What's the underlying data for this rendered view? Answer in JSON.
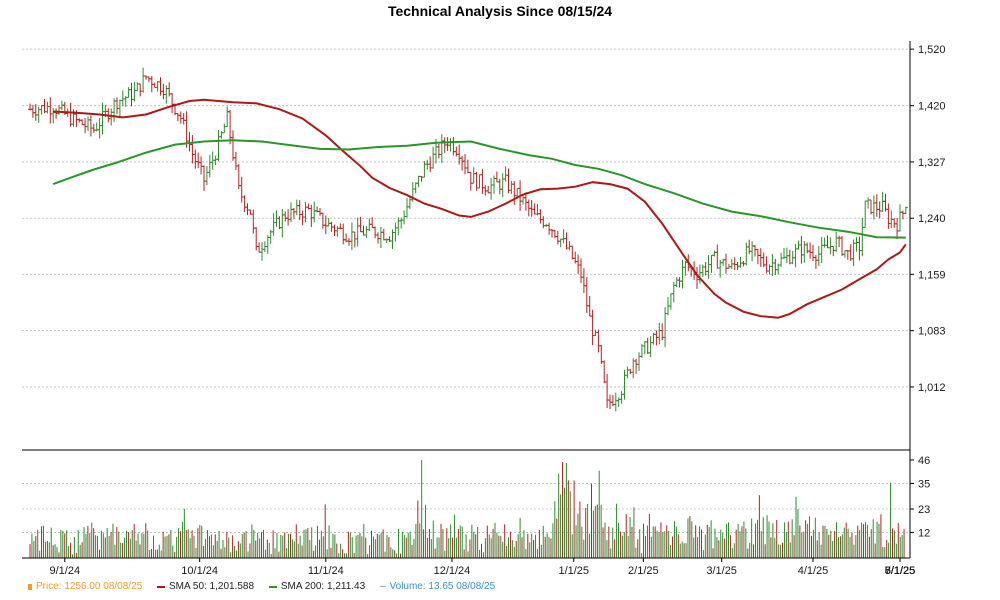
{
  "title": "Technical Analysis Since 08/15/24",
  "colors": {
    "up_bar": "#2e8b2e",
    "down_bar": "#b22222",
    "sma50": "#b01818",
    "sma200": "#2a962a",
    "price_swatch": "#f29c2b",
    "volume_text": "#3a8fc9",
    "grid": "#b8b8b8",
    "axis": "#000000"
  },
  "legend": {
    "price": "Price: 1256.00  08/08/25",
    "sma50": "SMA 50: 1,201.588",
    "sma200": "SMA 200: 1,211.43",
    "volume": "Volume: 13.65  08/08/25"
  },
  "chart_data": {
    "type": "line",
    "title": "Technical Analysis Since 08/15/24",
    "x_tick_labels": [
      "9/1/24",
      "10/1/24",
      "11/1/24",
      "12/1/24",
      "1/1/25",
      "2/1/25",
      "3/1/25",
      "4/1/25",
      "5/1/25",
      "6/1/25",
      "7/1/25",
      "8/1/25"
    ],
    "price_axis": {
      "scale": "log",
      "ylim": [
        938,
        1535
      ],
      "tick_labels": [
        "1,520",
        "1,420",
        "1,327",
        "1,240",
        "1,159",
        "1,083",
        "1,012"
      ],
      "tick_values": [
        1520,
        1420,
        1327,
        1240,
        1159,
        1083,
        1012
      ]
    },
    "volume_axis": {
      "ylim": [
        0,
        46
      ],
      "tick_labels": [
        "46",
        "35",
        "23",
        "12"
      ],
      "tick_values": [
        46,
        35,
        23,
        12
      ]
    },
    "grid": true,
    "series": [
      {
        "name": "SMA 50",
        "points": [
          [
            8,
            1410
          ],
          [
            16,
            1408
          ],
          [
            24,
            1405
          ],
          [
            32,
            1400
          ],
          [
            40,
            1405
          ],
          [
            48,
            1418
          ],
          [
            55,
            1428
          ],
          [
            60,
            1430
          ],
          [
            70,
            1426
          ],
          [
            78,
            1424
          ],
          [
            86,
            1414
          ],
          [
            94,
            1398
          ],
          [
            102,
            1370
          ],
          [
            108,
            1344
          ],
          [
            114,
            1320
          ],
          [
            118,
            1302
          ],
          [
            124,
            1286
          ],
          [
            130,
            1275
          ],
          [
            136,
            1262
          ],
          [
            142,
            1254
          ],
          [
            148,
            1244
          ],
          [
            152,
            1242
          ],
          [
            158,
            1250
          ],
          [
            164,
            1262
          ],
          [
            170,
            1276
          ],
          [
            176,
            1284
          ],
          [
            182,
            1285
          ],
          [
            188,
            1288
          ],
          [
            194,
            1295
          ],
          [
            200,
            1292
          ],
          [
            206,
            1285
          ],
          [
            212,
            1265
          ],
          [
            218,
            1232
          ],
          [
            224,
            1194
          ],
          [
            230,
            1158
          ],
          [
            236,
            1132
          ],
          [
            240,
            1120
          ],
          [
            246,
            1108
          ],
          [
            252,
            1102
          ],
          [
            258,
            1100
          ],
          [
            262,
            1105
          ],
          [
            268,
            1118
          ],
          [
            274,
            1128
          ],
          [
            280,
            1138
          ],
          [
            286,
            1152
          ],
          [
            292,
            1166
          ],
          [
            296,
            1180
          ],
          [
            300,
            1190
          ],
          [
            302,
            1201.6
          ]
        ]
      },
      {
        "name": "SMA 200",
        "points": [
          [
            8,
            1292
          ],
          [
            14,
            1302
          ],
          [
            22,
            1315
          ],
          [
            30,
            1326
          ],
          [
            40,
            1342
          ],
          [
            50,
            1355
          ],
          [
            60,
            1360
          ],
          [
            70,
            1362
          ],
          [
            80,
            1360
          ],
          [
            90,
            1354
          ],
          [
            100,
            1348
          ],
          [
            110,
            1347
          ],
          [
            120,
            1351
          ],
          [
            130,
            1353
          ],
          [
            140,
            1358
          ],
          [
            152,
            1360
          ],
          [
            162,
            1348
          ],
          [
            172,
            1338
          ],
          [
            180,
            1332
          ],
          [
            188,
            1322
          ],
          [
            196,
            1316
          ],
          [
            204,
            1306
          ],
          [
            212,
            1292
          ],
          [
            222,
            1278
          ],
          [
            232,
            1262
          ],
          [
            242,
            1250
          ],
          [
            252,
            1243
          ],
          [
            262,
            1234
          ],
          [
            272,
            1226
          ],
          [
            282,
            1220
          ],
          [
            292,
            1212
          ],
          [
            302,
            1211.43
          ]
        ]
      }
    ],
    "volume": [
      6.5,
      11.4,
      8.0,
      10.3,
      13.2,
      3.4,
      14.9,
      15.2,
      7.6,
      8.0,
      7.4,
      14.3,
      6.0,
      6.5,
      5.2,
      2.6,
      13.2,
      12.7,
      11.5,
      13.0,
      5.6,
      7.2,
      1.7,
      9.9,
      2.4,
      13.1,
      6.2,
      7.4,
      14.5,
      11.3,
      15.1,
      11.7,
      16.6,
      14.0,
      10.7,
      10.4,
      3.9,
      12.8,
      11.6,
      9.6,
      14.1,
      10.3,
      12.1,
      16.1,
      6.2,
      14.6,
      12.4,
      7.2,
      7.0,
      9.5,
      12.8,
      12.2,
      9.1,
      13.1,
      16.0,
      8.2,
      11.6,
      6.4,
      11.7,
      11.4,
      16.3,
      12.9,
      3.8,
      4.2,
      10.5,
      3.9,
      4.0,
      6.3,
      3.6,
      12.3,
      10.1,
      10.4,
      11.1,
      13.2,
      5.8,
      2.8,
      9.9,
      14.0,
      12.6,
      16.9,
      23.1,
      13.1,
      13.5,
      9.3,
      13.0,
      10.5,
      4.7,
      14.0,
      15.5,
      15.1,
      5.7,
      8.9,
      13.1,
      10.2,
      11.0,
      6.0,
      11.1,
      8.1,
      12.7,
      4.3,
      8.5,
      5.1,
      12.1,
      9.6,
      2.7,
      10.6,
      5.6,
      3.5,
      7.9,
      6.8,
      11.2,
      11.9,
      12.6,
      3.1,
      6.8,
      15.8,
      13.2,
      8.2,
      11.8,
      9.2,
      12.1,
      13.2,
      3.9,
      8.7,
      7.1,
      1.9,
      13.0,
      4.6,
      11.8,
      3.0,
      10.8,
      10.5,
      12.0,
      4.6,
      11.3,
      11.4,
      8.8,
      7.8,
      15.8,
      6.7,
      10.4,
      5.8,
      13.2,
      13.5,
      14.0,
      8.4,
      14.4,
      3.4,
      5.9,
      15.1,
      8.6,
      12.9,
      10.2,
      25.2,
      4.1,
      15.3,
      4.8,
      11.3,
      11.0,
      6.8,
      2.2,
      6.7,
      4.1,
      2.2,
      2.2,
      12.3,
      11.8,
      9.9,
      2.3,
      10.5,
      10.9,
      11.7,
      10.2,
      16.0,
      9.5,
      1.9,
      6.0,
      12.8,
      10.1,
      8.8,
      11.4,
      11.0,
      12.0,
      13.4,
      3.0,
      10.8,
      9.8,
      5.0,
      4.1,
      3.6,
      2.1,
      13.7,
      2.1,
      12.4,
      10.8,
      9.5,
      11.8,
      12.4,
      6.1,
      8.9,
      16.0,
      27.0,
      16.3,
      46.0,
      13.5,
      25.0,
      9.4,
      13.6,
      8.9,
      17.6,
      4.4,
      9.7,
      9.6,
      16.0,
      13.6,
      3.4,
      14.0,
      9.3,
      15.8,
      9.6,
      20.3,
      9.5,
      13.6,
      15.2,
      14.7,
      4.0,
      11.1,
      3.1,
      8.7,
      15.6,
      12.3,
      11.2,
      14.6,
      3.8,
      6.6,
      2.7,
      9.3,
      15.2,
      11.0,
      9.3,
      13.7,
      16.5,
      12.0,
      10.5,
      10.3,
      7.6,
      15.8,
      5.6,
      9.7,
      12.4,
      8.4,
      5.2,
      8.0,
      11.2,
      18.9,
      9.7,
      13.0,
      4.2,
      11.4,
      7.4,
      11.4,
      8.4,
      10.9,
      4.3,
      13.2,
      6.2,
      15.1,
      10.0,
      11.6,
      9.8,
      9.2,
      16.3,
      26.6,
      18.5,
      39.6,
      29.9,
      45.0,
      33.0,
      44.6,
      36.5,
      31.3,
      11.1,
      36.4,
      15.4,
      20.8,
      26.5,
      14.7,
      8.6,
      23.5,
      25.3,
      11.4,
      34.9,
      22.3,
      24.4,
      25.1,
      41.0,
      25.0,
      14.4,
      16.6,
      8.4,
      14.8,
      4.5,
      14.3,
      8.8,
      25.5,
      16.4,
      12.5,
      10.5,
      12.2,
      20.6,
      10.3,
      19.2,
      14.6,
      23.8,
      4.8,
      8.8,
      13.5,
      2.3,
      16.2,
      10.3,
      15.3,
      20.7,
      10.0,
      14.8,
      14.8,
      12.9,
      12.1,
      16.7,
      12.0,
      12.6,
      15.3,
      12.7,
      6.1,
      10.1,
      17.3,
      14.7,
      11.1,
      6.7,
      7.7,
      6.9,
      7.0,
      18.6,
      19.7,
      17.2,
      9.6,
      15.4,
      9.9,
      14.9,
      13.4,
      3.7,
      11.0,
      15.6,
      14.5,
      17.7,
      4.6,
      13.8,
      9.8,
      8.3,
      13.4,
      11.7,
      9.2,
      16.0,
      16.7,
      10.7,
      4.6,
      6.8,
      13.3,
      16.0,
      12.6,
      14.9,
      17.1,
      13.9,
      4.4,
      7.1,
      18.5,
      6.4,
      16.2,
      17.9,
      29.5,
      12.6,
      19.1,
      6.5,
      20.1,
      17.1,
      9.7,
      16.3,
      9.5,
      17.8,
      6.4,
      6.2,
      7.2,
      16.7,
      12.2,
      17.1,
      7.3,
      18.2,
      10.7,
      28.7,
      22.9,
      15.3,
      12.0,
      12.4,
      17.7,
      16.1,
      19.5,
      10.4,
      13.2,
      18.9,
      8.3,
      12.0,
      6.2,
      15.2,
      15.1,
      13.6,
      10.9,
      12.8,
      8.0,
      12.6,
      16.8,
      9.8,
      10.2,
      11.1,
      14.3,
      16.6,
      13.8,
      9.8,
      11.9,
      6.3,
      10.8,
      15.2,
      13.2,
      16.7,
      15.9,
      16.8,
      15.6,
      10.0,
      13.6,
      18.2,
      6.8,
      17.1,
      16.0,
      20.5,
      5.2,
      5.1,
      8.5,
      7.2,
      35.3,
      13.9,
      13.0,
      6.7,
      16.4,
      9.9,
      10.8,
      13.65
    ],
    "price_anchors": [
      [
        0,
        1414
      ],
      [
        8,
        1418
      ],
      [
        15,
        1396
      ],
      [
        22,
        1380
      ],
      [
        30,
        1428
      ],
      [
        36,
        1442
      ],
      [
        40,
        1470
      ],
      [
        46,
        1452
      ],
      [
        52,
        1400
      ],
      [
        56,
        1340
      ],
      [
        60,
        1298
      ],
      [
        64,
        1342
      ],
      [
        68,
        1398
      ],
      [
        72,
        1282
      ],
      [
        76,
        1250
      ],
      [
        78,
        1190
      ],
      [
        82,
        1215
      ],
      [
        88,
        1245
      ],
      [
        96,
        1252
      ],
      [
        102,
        1232
      ],
      [
        110,
        1215
      ],
      [
        118,
        1222
      ],
      [
        124,
        1215
      ],
      [
        128,
        1238
      ],
      [
        132,
        1278
      ],
      [
        136,
        1318
      ],
      [
        140,
        1340
      ],
      [
        144,
        1362
      ],
      [
        148,
        1345
      ],
      [
        152,
        1302
      ],
      [
        158,
        1288
      ],
      [
        164,
        1295
      ],
      [
        170,
        1265
      ],
      [
        174,
        1242
      ],
      [
        178,
        1235
      ],
      [
        182,
        1215
      ],
      [
        186,
        1190
      ],
      [
        190,
        1158
      ],
      [
        193,
        1098
      ],
      [
        196,
        1058
      ],
      [
        199,
        990
      ],
      [
        204,
        1010
      ],
      [
        208,
        1046
      ],
      [
        214,
        1066
      ],
      [
        218,
        1082
      ],
      [
        222,
        1142
      ],
      [
        226,
        1172
      ],
      [
        230,
        1160
      ],
      [
        236,
        1180
      ],
      [
        242,
        1168
      ],
      [
        248,
        1192
      ],
      [
        254,
        1172
      ],
      [
        260,
        1180
      ],
      [
        266,
        1195
      ],
      [
        272,
        1188
      ],
      [
        278,
        1205
      ],
      [
        282,
        1188
      ],
      [
        286,
        1198
      ],
      [
        288,
        1258
      ],
      [
        294,
        1256
      ],
      [
        296,
        1240
      ],
      [
        299,
        1232
      ],
      [
        302,
        1256
      ]
    ],
    "last_close": 1256.0,
    "sma50_last": 1201.588,
    "sma200_last": 1211.43,
    "volume_last": 13.65
  }
}
